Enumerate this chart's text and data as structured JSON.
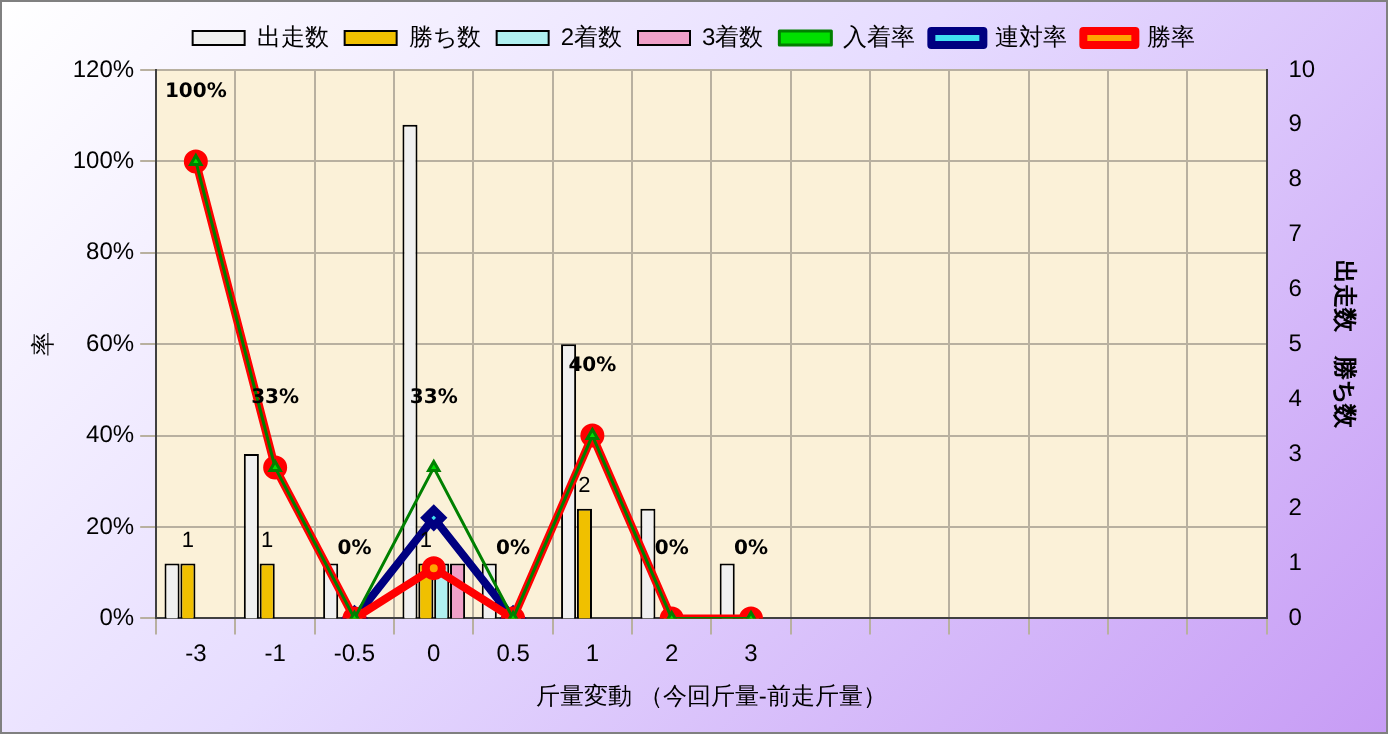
{
  "chart_data": {
    "type": "bar",
    "xlabel": "斤量変動 （今回斤量-前走斤量）",
    "ylabel": "率",
    "y2label": "出走数　勝ち数",
    "categories": [
      "-3",
      "-1",
      "-0.5",
      "0",
      "0.5",
      "1",
      "2",
      "3",
      null,
      null,
      null,
      null,
      null,
      null
    ],
    "series": [
      {
        "name": "出走数",
        "axis": "y2",
        "color": "#f0f0f0",
        "values": [
          1,
          3,
          1,
          9,
          1,
          5,
          2,
          1,
          null,
          null,
          null,
          null,
          null,
          null
        ]
      },
      {
        "name": "勝ち数",
        "axis": "y2",
        "color": "#f0c000",
        "values": [
          1,
          1,
          0,
          1,
          0,
          2,
          0,
          0,
          null,
          null,
          null,
          null,
          null,
          null
        ],
        "value_labels": [
          "1",
          "1",
          null,
          "1",
          null,
          "2",
          null,
          null,
          null,
          null,
          null,
          null,
          null,
          null
        ]
      },
      {
        "name": "2着数",
        "axis": "y2",
        "color": "#b0f0f0",
        "values": [
          0,
          0,
          0,
          1,
          0,
          0,
          0,
          0,
          null,
          null,
          null,
          null,
          null,
          null
        ]
      },
      {
        "name": "3着数",
        "axis": "y2",
        "color": "#f0a0c8",
        "values": [
          0,
          0,
          0,
          1,
          0,
          0,
          0,
          0,
          null,
          null,
          null,
          null,
          null,
          null
        ]
      },
      {
        "name": "入着率",
        "type": "line",
        "marker": "triangle",
        "color": "#008000",
        "values": [
          100,
          33,
          0,
          33,
          0,
          40,
          0,
          0,
          null,
          null,
          null,
          null,
          null,
          null
        ],
        "value_labels": [
          "100%",
          "33%",
          "0%",
          "33%",
          "0%",
          "40%",
          "0%",
          "0%",
          null,
          null,
          null,
          null,
          null,
          null
        ]
      },
      {
        "name": "連対率",
        "type": "line",
        "marker": "diamond",
        "color": "#000080",
        "values": [
          null,
          null,
          0,
          22,
          0,
          null,
          null,
          null,
          null,
          null,
          null,
          null,
          null,
          null
        ]
      },
      {
        "name": "勝率",
        "type": "line",
        "marker": "circle",
        "color": "#ff0000",
        "values": [
          100,
          33,
          0,
          11,
          0,
          40,
          0,
          0,
          null,
          null,
          null,
          null,
          null,
          null
        ]
      }
    ],
    "ylim": [
      0,
      120
    ],
    "yticks": [
      {
        "value": 0,
        "label": "0%"
      },
      {
        "value": 20,
        "label": "20%"
      },
      {
        "value": 40,
        "label": "40%"
      },
      {
        "value": 60,
        "label": "60%"
      },
      {
        "value": 80,
        "label": "80%"
      },
      {
        "value": 100,
        "label": "100%"
      },
      {
        "value": 120,
        "label": "120%"
      }
    ],
    "y2lim": [
      0,
      10
    ],
    "y2ticks": [
      0,
      1,
      2,
      3,
      4,
      5,
      6,
      7,
      8,
      9,
      10
    ],
    "grid": true,
    "legend": "top"
  }
}
